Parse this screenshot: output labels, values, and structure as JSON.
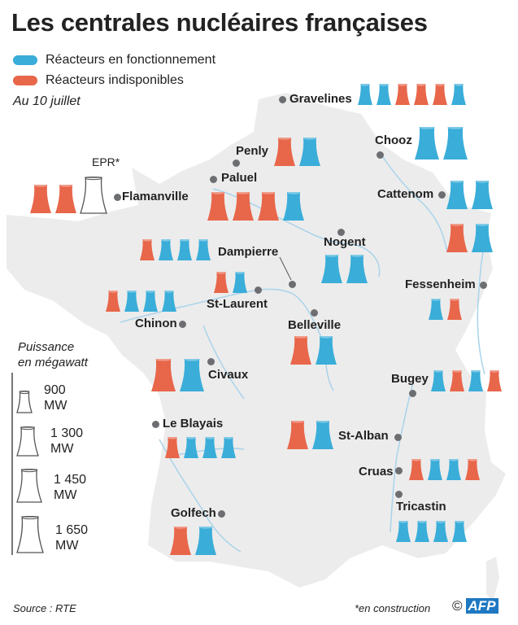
{
  "title": "Les centrales nucléaires françaises",
  "legend": {
    "running": {
      "label": "Réacteurs en fonctionnement",
      "color": "#3aadd9"
    },
    "unavailable": {
      "label": "Réacteurs indisponibles",
      "color": "#e8664a"
    }
  },
  "date_note": "Au 10 juillet",
  "colors": {
    "map": "#ececec",
    "river": "#a9d3ea",
    "dot": "#6d6e71",
    "outline": "#555555"
  },
  "scale": {
    "title_line1": "Puissance",
    "title_line2": "en mégawatt",
    "entries": [
      {
        "value": "900",
        "unit": "MW",
        "mw": 900
      },
      {
        "value": "1 300",
        "unit": "MW",
        "mw": 1300
      },
      {
        "value": "1 450",
        "unit": "MW",
        "mw": 1450
      },
      {
        "value": "1 650",
        "unit": "MW",
        "mw": 1650
      }
    ]
  },
  "plants": [
    {
      "name": "Gravelines",
      "reactors": [
        {
          "mw": 900,
          "s": "running"
        },
        {
          "mw": 900,
          "s": "running"
        },
        {
          "mw": 900,
          "s": "unavailable"
        },
        {
          "mw": 900,
          "s": "unavailable"
        },
        {
          "mw": 900,
          "s": "unavailable"
        },
        {
          "mw": 900,
          "s": "running"
        }
      ]
    },
    {
      "name": "Chooz",
      "reactors": [
        {
          "mw": 1450,
          "s": "running"
        },
        {
          "mw": 1450,
          "s": "running"
        }
      ]
    },
    {
      "name": "Penly",
      "reactors": [
        {
          "mw": 1300,
          "s": "unavailable"
        },
        {
          "mw": 1300,
          "s": "running"
        }
      ]
    },
    {
      "name": "Paluel",
      "reactors": [
        {
          "mw": 1300,
          "s": "unavailable"
        },
        {
          "mw": 1300,
          "s": "unavailable"
        },
        {
          "mw": 1300,
          "s": "unavailable"
        },
        {
          "mw": 1300,
          "s": "running"
        }
      ]
    },
    {
      "name": "Flamanville",
      "epr_label": "EPR*",
      "reactors": [
        {
          "mw": 1300,
          "s": "unavailable"
        },
        {
          "mw": 1300,
          "s": "unavailable"
        },
        {
          "mw": 1650,
          "s": "construction"
        }
      ]
    },
    {
      "name": "Cattenom",
      "reactors": [
        {
          "mw": 1300,
          "s": "running"
        },
        {
          "mw": 1300,
          "s": "running"
        },
        {
          "mw": 1300,
          "s": "unavailable"
        },
        {
          "mw": 1300,
          "s": "running"
        }
      ]
    },
    {
      "name": "Nogent",
      "reactors": [
        {
          "mw": 1300,
          "s": "running"
        },
        {
          "mw": 1300,
          "s": "running"
        }
      ]
    },
    {
      "name": "Dampierre",
      "reactors": [
        {
          "mw": 900,
          "s": "unavailable"
        },
        {
          "mw": 900,
          "s": "running"
        },
        {
          "mw": 900,
          "s": "running"
        },
        {
          "mw": 900,
          "s": "running"
        }
      ]
    },
    {
      "name": "St-Laurent",
      "reactors": [
        {
          "mw": 900,
          "s": "unavailable"
        },
        {
          "mw": 900,
          "s": "running"
        }
      ]
    },
    {
      "name": "Fessenheim",
      "reactors": [
        {
          "mw": 900,
          "s": "running"
        },
        {
          "mw": 900,
          "s": "unavailable"
        }
      ]
    },
    {
      "name": "Chinon",
      "reactors": [
        {
          "mw": 900,
          "s": "unavailable"
        },
        {
          "mw": 900,
          "s": "running"
        },
        {
          "mw": 900,
          "s": "running"
        },
        {
          "mw": 900,
          "s": "running"
        }
      ]
    },
    {
      "name": "Belleville",
      "reactors": [
        {
          "mw": 1300,
          "s": "unavailable"
        },
        {
          "mw": 1300,
          "s": "running"
        }
      ]
    },
    {
      "name": "Civaux",
      "reactors": [
        {
          "mw": 1450,
          "s": "unavailable"
        },
        {
          "mw": 1450,
          "s": "running"
        }
      ]
    },
    {
      "name": "Bugey",
      "reactors": [
        {
          "mw": 900,
          "s": "running"
        },
        {
          "mw": 900,
          "s": "unavailable"
        },
        {
          "mw": 900,
          "s": "running"
        },
        {
          "mw": 900,
          "s": "unavailable"
        }
      ]
    },
    {
      "name": "Le Blayais",
      "reactors": [
        {
          "mw": 900,
          "s": "unavailable"
        },
        {
          "mw": 900,
          "s": "running"
        },
        {
          "mw": 900,
          "s": "running"
        },
        {
          "mw": 900,
          "s": "running"
        }
      ]
    },
    {
      "name": "St-Alban",
      "reactors": [
        {
          "mw": 1300,
          "s": "unavailable"
        },
        {
          "mw": 1300,
          "s": "running"
        }
      ]
    },
    {
      "name": "Cruas",
      "reactors": [
        {
          "mw": 900,
          "s": "unavailable"
        },
        {
          "mw": 900,
          "s": "running"
        },
        {
          "mw": 900,
          "s": "running"
        },
        {
          "mw": 900,
          "s": "unavailable"
        }
      ]
    },
    {
      "name": "Tricastin",
      "reactors": [
        {
          "mw": 900,
          "s": "running"
        },
        {
          "mw": 900,
          "s": "running"
        },
        {
          "mw": 900,
          "s": "running"
        },
        {
          "mw": 900,
          "s": "running"
        }
      ]
    },
    {
      "name": "Golfech",
      "reactors": [
        {
          "mw": 1300,
          "s": "unavailable"
        },
        {
          "mw": 1300,
          "s": "running"
        }
      ]
    }
  ],
  "source": "Source : RTE",
  "construction_note": "*en construction",
  "logo": {
    "copyright": "©",
    "text": "AFP"
  }
}
